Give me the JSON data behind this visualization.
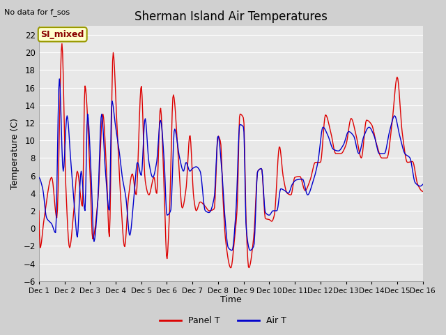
{
  "title": "Sherman Island Air Temperatures",
  "xlabel": "Time",
  "ylabel": "Temperature (C)",
  "top_left_text": "No data for f_sos",
  "legend_label_box": "SI_mixed",
  "series1_label": "Panel T",
  "series2_label": "Air T",
  "series1_color": "#dd0000",
  "series2_color": "#0000cc",
  "ylim": [
    -6,
    23
  ],
  "yticks": [
    -6,
    -4,
    -2,
    0,
    2,
    4,
    6,
    8,
    10,
    12,
    14,
    16,
    18,
    20,
    22
  ],
  "plot_bg_color": "#e8e8e8",
  "grid_color": "#ffffff",
  "title_fontsize": 12,
  "axis_fontsize": 9,
  "legend_box_facecolor": "#ffffcc",
  "legend_box_edgecolor": "#999900",
  "legend_box_textcolor": "#880000"
}
